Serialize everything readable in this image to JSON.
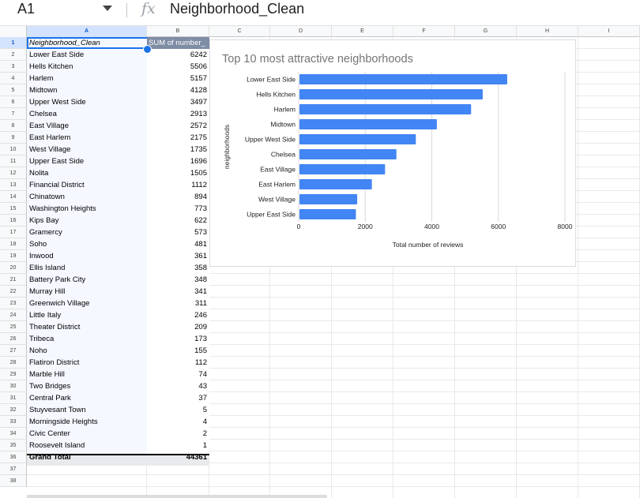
{
  "formula_bar": {
    "cell_ref": "A1",
    "fx_icon": "fx",
    "formula": "Neighborhood_Clean"
  },
  "columns": [
    "A",
    "B",
    "C",
    "D",
    "E",
    "F",
    "G",
    "H",
    "I"
  ],
  "rows": [
    "1",
    "2",
    "3",
    "4",
    "5",
    "6",
    "7",
    "8",
    "9",
    "10",
    "11",
    "12",
    "13",
    "14",
    "15",
    "16",
    "17",
    "18",
    "19",
    "20",
    "21",
    "22",
    "23",
    "24",
    "25",
    "26",
    "27",
    "28",
    "29",
    "30",
    "31",
    "32",
    "33",
    "34",
    "35",
    "36",
    "37",
    "38"
  ],
  "pivot": {
    "header_a": "Neighborhood_Clean",
    "header_b": "SUM of number_",
    "entries": [
      {
        "name": "Lower East Side",
        "value": "6242"
      },
      {
        "name": "Hells Kitchen",
        "value": "5506"
      },
      {
        "name": "Harlem",
        "value": "5157"
      },
      {
        "name": "Midtown",
        "value": "4128"
      },
      {
        "name": "Upper West Side",
        "value": "3497"
      },
      {
        "name": "Chelsea",
        "value": "2913"
      },
      {
        "name": "East Village",
        "value": "2572"
      },
      {
        "name": "East Harlem",
        "value": "2175"
      },
      {
        "name": "West Village",
        "value": "1735"
      },
      {
        "name": "Upper East Side",
        "value": "1696"
      },
      {
        "name": "Nolita",
        "value": "1505"
      },
      {
        "name": "Financial District",
        "value": "1112"
      },
      {
        "name": "Chinatown",
        "value": "894"
      },
      {
        "name": "Washington Heights",
        "value": "773"
      },
      {
        "name": "Kips Bay",
        "value": "622"
      },
      {
        "name": "Gramercy",
        "value": "573"
      },
      {
        "name": "Soho",
        "value": "481"
      },
      {
        "name": "Inwood",
        "value": "361"
      },
      {
        "name": "Ellis Island",
        "value": "358"
      },
      {
        "name": "Battery Park City",
        "value": "348"
      },
      {
        "name": "Murray Hill",
        "value": "341"
      },
      {
        "name": "Greenwich Village",
        "value": "311"
      },
      {
        "name": "Little Italy",
        "value": "246"
      },
      {
        "name": "Theater District",
        "value": "209"
      },
      {
        "name": "Tribeca",
        "value": "173"
      },
      {
        "name": "Noho",
        "value": "155"
      },
      {
        "name": "Flatiron District",
        "value": "112"
      },
      {
        "name": "Marble Hill",
        "value": "74"
      },
      {
        "name": "Two Bridges",
        "value": "43"
      },
      {
        "name": "Central Park",
        "value": "37"
      },
      {
        "name": "Stuyvesant Town",
        "value": "5"
      },
      {
        "name": "Morningside Heights",
        "value": "4"
      },
      {
        "name": "Civic Center",
        "value": "2"
      },
      {
        "name": "Roosevelt Island",
        "value": "1"
      }
    ],
    "grand_total_label": "Grand Total",
    "grand_total_value": "44361"
  },
  "colors": {
    "bar": "#4285f4",
    "selection": "#1a73e8",
    "pivot_header": "#7e8ca4"
  },
  "chart_data": {
    "type": "bar",
    "orientation": "horizontal",
    "title": "Top 10 most attractive neighborhoods",
    "xlabel": "Total number of reviews",
    "ylabel": "neighborhoods",
    "categories": [
      "Lower East Side",
      "Hells Kitchen",
      "Harlem",
      "Midtown",
      "Upper West Side",
      "Chelsea",
      "East Village",
      "East Harlem",
      "West Village",
      "Upper East Side"
    ],
    "values": [
      6242,
      5506,
      5157,
      4128,
      3497,
      2913,
      2572,
      2175,
      1735,
      1696
    ],
    "xlim": [
      0,
      8000
    ],
    "xticks": [
      "0",
      "2000",
      "4000",
      "6000",
      "8000"
    ],
    "grid": true,
    "legend": "none"
  }
}
